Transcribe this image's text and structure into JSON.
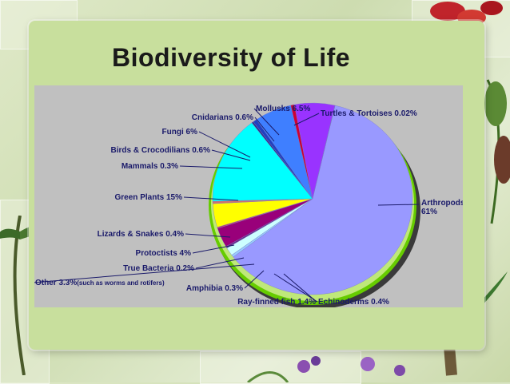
{
  "slide": {
    "title": "Biodiversity of Life"
  },
  "chart_data": {
    "type": "pie",
    "title": "Biodiversity of Life",
    "slices": [
      {
        "label": "Arthropods",
        "value_text": "61%",
        "value": 61,
        "color": "#9999ff"
      },
      {
        "label": "Echinoderms",
        "value_text": "0.4%",
        "value": 0.4,
        "color": "#99ccff"
      },
      {
        "label": "Ray-finned fish",
        "value_text": "1.4%",
        "value": 1.4,
        "color": "#ccffff"
      },
      {
        "label": "Amphibia",
        "value_text": "0.3%",
        "value": 0.3,
        "color": "#6a2c8a"
      },
      {
        "label": "Other",
        "value_text": "3.3%",
        "note": "(such as worms and rotifers)",
        "value": 3.3,
        "color": "#99007a"
      },
      {
        "label": "True Bacteria",
        "value_text": "0.2%",
        "value": 0.2,
        "color": "#cc3366"
      },
      {
        "label": "Protoctists",
        "value_text": "4%",
        "value": 4,
        "color": "#ffff00"
      },
      {
        "label": "Lizards & Snakes",
        "value_text": "0.4%",
        "value": 0.4,
        "color": "#d07070"
      },
      {
        "label": "Green Plants",
        "value_text": "15%",
        "value": 15,
        "color": "#00ffff"
      },
      {
        "label": "Mammals",
        "value_text": "0.3%",
        "value": 0.3,
        "color": "#303090"
      },
      {
        "label": "Birds & Crocodilians",
        "value_text": "0.6%",
        "value": 0.6,
        "color": "#2040c0"
      },
      {
        "label": "Fungi",
        "value_text": "6%",
        "value": 6,
        "color": "#3f7fff"
      },
      {
        "label": "Cnidarians",
        "value_text": "0.6%",
        "value": 0.6,
        "color": "#cc0033"
      },
      {
        "label": "Mollusks",
        "value_text": "6.5%",
        "value": 6.5,
        "color": "#9933ff"
      },
      {
        "label": "Turtles & Tortoises",
        "value_text": "0.02%",
        "value": 0.02,
        "color": "#330066"
      }
    ],
    "rim_color": "#66cc00",
    "background": "#c0c0c0"
  }
}
